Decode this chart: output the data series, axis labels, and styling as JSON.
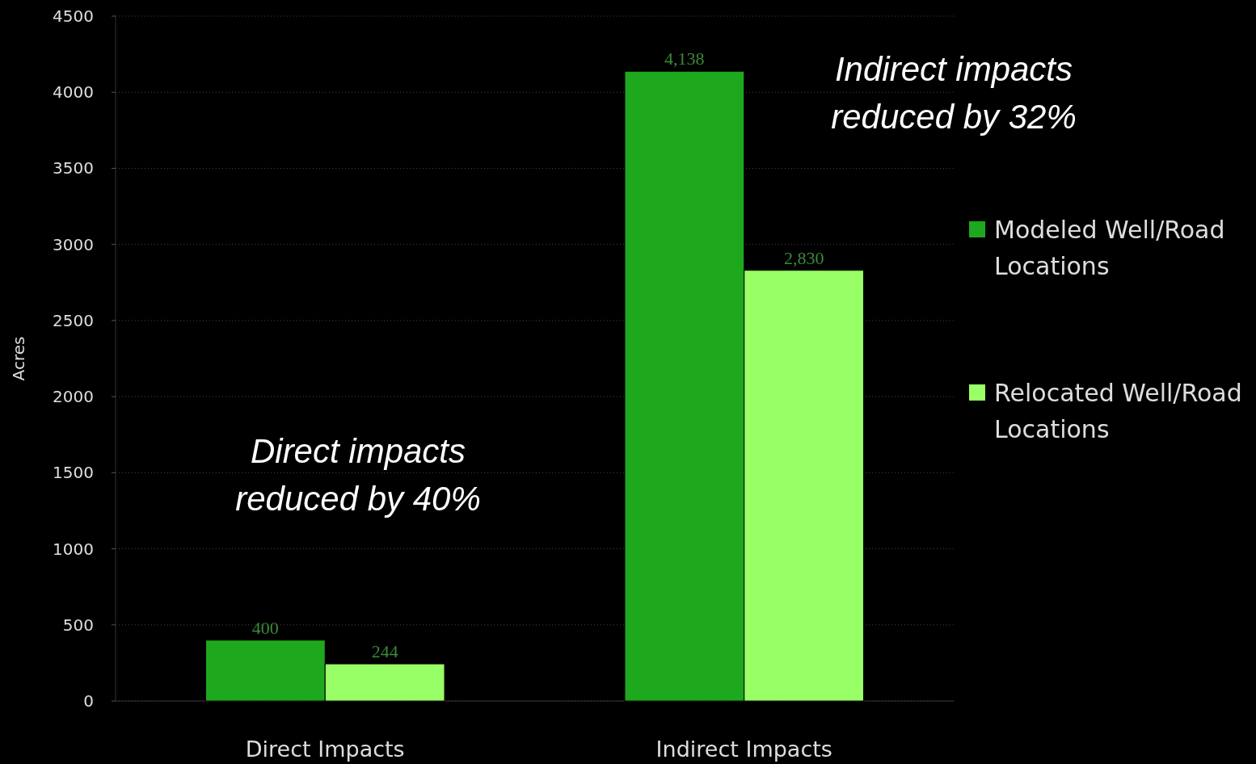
{
  "chart_data": {
    "type": "bar",
    "ylabel": "Acres",
    "categories": [
      "Direct Impacts",
      "Indirect Impacts"
    ],
    "series": [
      {
        "name": "Modeled Well/Road Locations",
        "color": "#1ea81e",
        "values": [
          400,
          4138
        ],
        "value_labels": [
          "400",
          "4,138"
        ]
      },
      {
        "name": "Relocated Well/Road Locations",
        "color": "#99ff66",
        "values": [
          244,
          2830
        ],
        "value_labels": [
          "244",
          "2,830"
        ]
      }
    ],
    "ylim": [
      0,
      4500
    ],
    "yticks": [
      0,
      500,
      1000,
      1500,
      2000,
      2500,
      3000,
      3500,
      4000,
      4500
    ],
    "grid": "y",
    "legend": "right",
    "annotations": [
      "Direct impacts\nreduced by 40%",
      "Indirect impacts\nreduced by 32%"
    ]
  }
}
